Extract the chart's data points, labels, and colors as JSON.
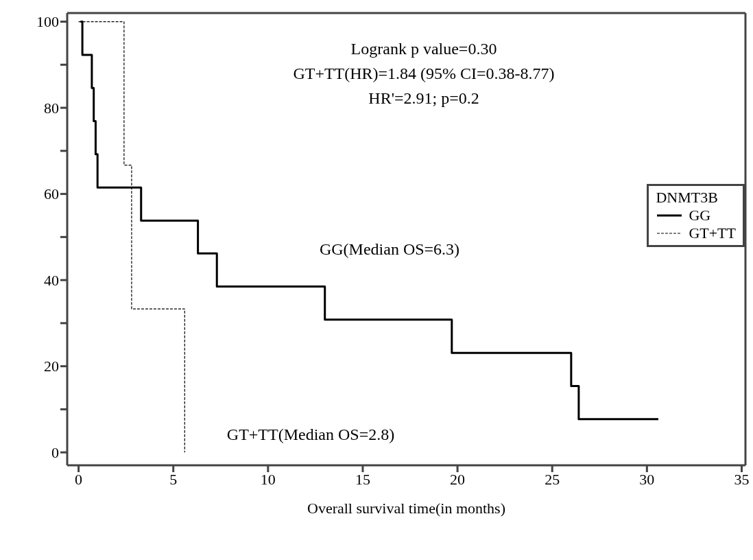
{
  "chart_data": {
    "type": "step",
    "xlabel": "Overall survival time(in months)",
    "legend_title": "DNMT3B",
    "legend": "right",
    "series": [
      {
        "name": "GG",
        "color": "#000000",
        "line_style": "solid",
        "x": [
          0.1,
          0.2,
          0.7,
          0.8,
          0.9,
          1.0,
          3.3,
          6.3,
          7.3,
          13.0,
          19.7,
          26.0,
          26.4,
          30.6
        ],
        "values": [
          100,
          92.3,
          84.6,
          76.9,
          69.2,
          61.5,
          53.8,
          46.2,
          38.5,
          30.8,
          23.1,
          15.4,
          7.7,
          7.7
        ]
      },
      {
        "name": "GT+TT",
        "color": "#000000",
        "line_style": "dashed",
        "x": [
          0,
          2.4,
          2.8,
          5.6
        ],
        "values": [
          100,
          66.7,
          33.3,
          0
        ]
      }
    ],
    "xlim": [
      -0.6,
      35.2
    ],
    "xticks": [
      0,
      5,
      10,
      15,
      20,
      25,
      30,
      35
    ],
    "ylim": [
      -3,
      102
    ],
    "yticks": [
      0,
      {
        "value": 10,
        "label": null
      },
      20,
      {
        "value": 30,
        "label": null
      },
      40,
      {
        "value": 50,
        "label": null
      },
      60,
      {
        "value": 70,
        "label": null
      },
      80,
      {
        "value": 90,
        "label": null
      },
      100
    ],
    "marker": "none",
    "annotations": [
      "Logrank p value=0.30",
      "GT+TT(HR)=1.84 (95% CI=0.38-8.77)",
      "HR'=2.91; p=0.2",
      "GG(Median OS=6.3)",
      "GT+TT(Median OS=2.8)"
    ]
  }
}
